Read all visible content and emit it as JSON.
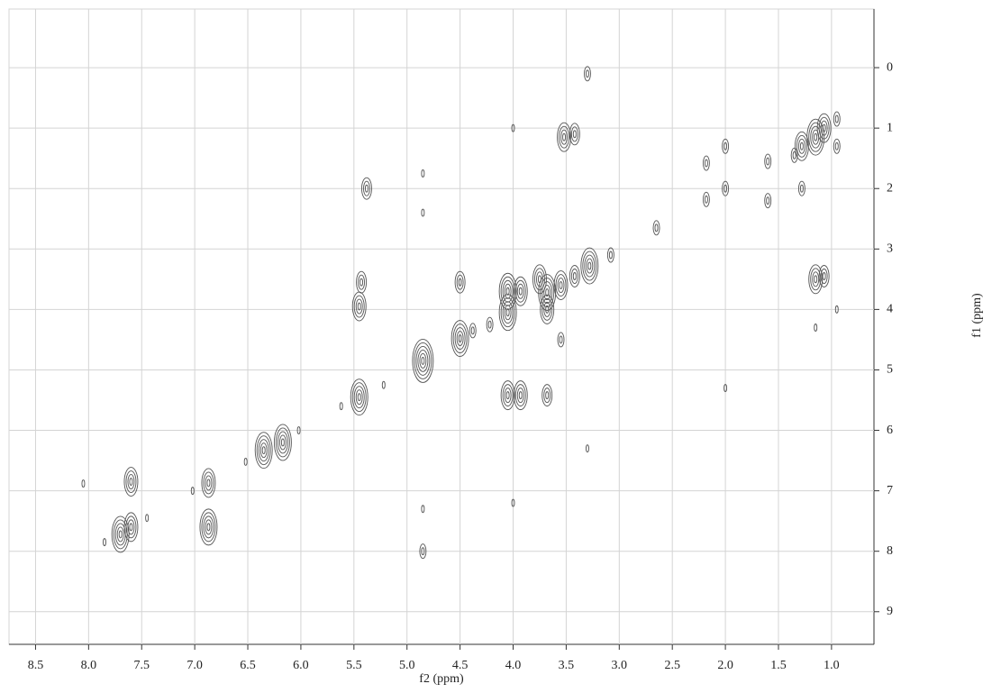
{
  "chart_data": {
    "type": "contour",
    "xlabel": "f2 (ppm)",
    "ylabel": "f1 (ppm)",
    "xlim": [
      8.75,
      0.6
    ],
    "ylim": [
      -0.97,
      9.54
    ],
    "xticks": [
      {
        "value": 8.5,
        "label": "8.5"
      },
      {
        "value": 8.0,
        "label": "8.0"
      },
      {
        "value": 7.5,
        "label": "7.5"
      },
      {
        "value": 7.0,
        "label": "7.0"
      },
      {
        "value": 6.5,
        "label": "6.5"
      },
      {
        "value": 6.0,
        "label": "6.0"
      },
      {
        "value": 5.5,
        "label": "5.5"
      },
      {
        "value": 5.0,
        "label": "5.0"
      },
      {
        "value": 4.5,
        "label": "4.5"
      },
      {
        "value": 4.0,
        "label": "4.0"
      },
      {
        "value": 3.5,
        "label": "3.5"
      },
      {
        "value": 3.0,
        "label": "3.0"
      },
      {
        "value": 2.5,
        "label": "2.5"
      },
      {
        "value": 2.0,
        "label": "2.0"
      },
      {
        "value": 1.5,
        "label": "1.5"
      },
      {
        "value": 1.0,
        "label": "1.0"
      }
    ],
    "yticks": [
      0,
      1,
      2,
      3,
      4,
      5,
      6,
      7,
      8,
      9
    ],
    "grid": true,
    "color": "#555555",
    "peaks": {
      "x": [
        7.7,
        7.6,
        7.6,
        6.87,
        6.87,
        6.35,
        6.17,
        5.45,
        5.45,
        5.43,
        4.85,
        4.5,
        4.5,
        4.05,
        4.05,
        4.05,
        3.93,
        3.93,
        3.75,
        3.68,
        3.68,
        3.68,
        3.55,
        3.52,
        3.42,
        3.55,
        3.28,
        3.42,
        5.38,
        2.18,
        2.18,
        2.0,
        2.0,
        1.6,
        1.6,
        1.28,
        1.28,
        1.15,
        1.07,
        1.15,
        1.07,
        0.95,
        0.95,
        2.65,
        0.95,
        1.35,
        5.62,
        5.22,
        6.02,
        6.52,
        7.02,
        7.45,
        7.85,
        8.05,
        4.85,
        4.85,
        4.85,
        4.85,
        4.0,
        4.0,
        3.3,
        3.3,
        2.0,
        1.15,
        4.22,
        4.38,
        3.08
      ],
      "y": [
        7.72,
        6.85,
        7.6,
        6.87,
        7.6,
        6.33,
        6.2,
        5.45,
        3.95,
        3.55,
        4.85,
        4.48,
        3.55,
        3.7,
        4.05,
        5.42,
        5.42,
        3.7,
        3.5,
        3.72,
        4.0,
        5.42,
        3.6,
        1.15,
        1.1,
        4.5,
        3.28,
        3.45,
        2.0,
        1.58,
        2.18,
        1.3,
        2.0,
        1.55,
        2.2,
        1.3,
        2.0,
        1.15,
        1.0,
        3.5,
        3.45,
        1.3,
        4.0,
        2.65,
        0.85,
        1.45,
        5.6,
        5.25,
        6.0,
        6.52,
        7.0,
        7.45,
        7.85,
        6.88,
        8.0,
        7.3,
        1.75,
        2.4,
        7.2,
        1.0,
        6.3,
        0.1,
        5.3,
        4.3,
        4.25,
        4.35,
        3.1
      ],
      "levels": [
        5,
        4,
        4,
        4,
        5,
        5,
        5,
        5,
        4,
        3,
        6,
        5,
        3,
        5,
        5,
        4,
        4,
        4,
        4,
        5,
        4,
        3,
        4,
        4,
        3,
        2,
        5,
        3,
        3,
        2,
        2,
        2,
        2,
        2,
        2,
        4,
        2,
        5,
        4,
        4,
        3,
        2,
        1,
        2,
        2,
        2,
        1,
        1,
        1,
        1,
        1,
        1,
        1,
        1,
        2,
        1,
        1,
        1,
        1,
        1,
        1,
        2,
        1,
        1,
        2,
        2,
        2
      ]
    }
  }
}
